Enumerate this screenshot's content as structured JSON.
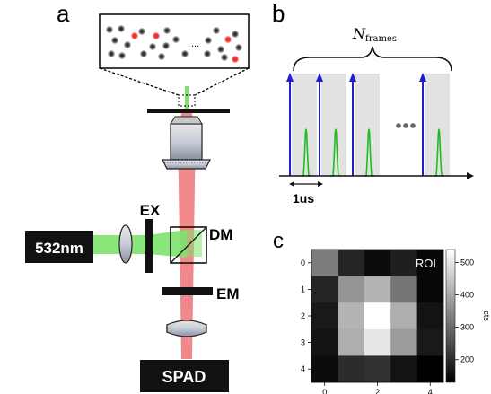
{
  "panels": {
    "a": {
      "letter": "a"
    },
    "b": {
      "letter": "b"
    },
    "c": {
      "letter": "c"
    }
  },
  "setup": {
    "laser_label": "532nm",
    "excitation_filter_label": "EX",
    "dichroic_label": "DM",
    "emission_filter_label": "EM",
    "detector_label": "SPAD",
    "inset_ellipsis": "...",
    "colors": {
      "laser_beam": "#7de36b",
      "fluorescence_beam": "#f08a8a",
      "emitter_on": "#e8202a",
      "emitter_off": "#2a2a2a",
      "component_fill": "#d0d0d0"
    }
  },
  "timing": {
    "n_frames_label": "N",
    "n_frames_subscript": "frames",
    "time_scale_label": "1us",
    "ellipsis": "•••",
    "colors": {
      "pulse": "#1f1fd1",
      "response": "#22bb22",
      "frame_window": "#e2e2e2",
      "dots": "#666666"
    }
  },
  "roi_map": {
    "label": "ROI",
    "colorbar_label": "cts",
    "x_ticks": [
      "0",
      "2",
      "4"
    ],
    "y_ticks": [
      "0",
      "1",
      "2",
      "3",
      "4"
    ],
    "colorbar_ticks": [
      "200",
      "300",
      "400",
      "500"
    ],
    "colorbar_range": [
      130,
      540
    ],
    "chart_data": {
      "type": "heatmap",
      "rows": 5,
      "cols": 5,
      "values": [
        [
          330,
          190,
          150,
          180,
          140
        ],
        [
          190,
          370,
          420,
          320,
          140
        ],
        [
          170,
          420,
          540,
          410,
          160
        ],
        [
          160,
          410,
          500,
          380,
          170
        ],
        [
          150,
          200,
          210,
          160,
          130
        ]
      ],
      "zlim": [
        130,
        540
      ],
      "colormap": "grayscale",
      "zlabel": "cts"
    }
  }
}
